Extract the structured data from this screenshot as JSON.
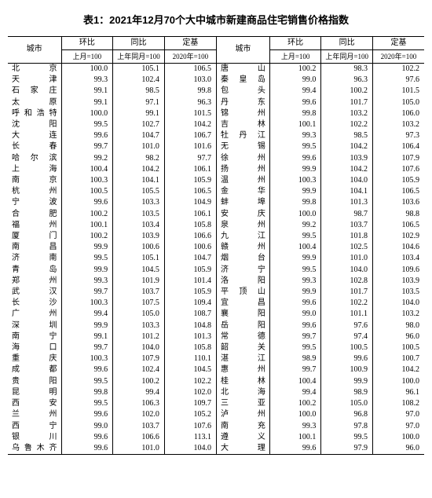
{
  "title": "表1：2021年12月70个大中城市新建商品住宅销售价格指数",
  "header": {
    "city": "城市",
    "mom": "环比",
    "yoy": "同比",
    "base": "定基",
    "mom_sub": "上月=100",
    "yoy_sub": "上年同月=100",
    "base_sub": "2020年=100"
  },
  "left": [
    {
      "c": "北　　京",
      "m": "100.0",
      "y": "105.1",
      "b": "106.5"
    },
    {
      "c": "天　　津",
      "m": "99.3",
      "y": "102.4",
      "b": "103.0"
    },
    {
      "c": "石 家 庄",
      "m": "99.1",
      "y": "98.5",
      "b": "99.8"
    },
    {
      "c": "太　　原",
      "m": "99.1",
      "y": "97.1",
      "b": "96.3"
    },
    {
      "c": "呼和浩特",
      "m": "100.0",
      "y": "99.1",
      "b": "101.5"
    },
    {
      "c": "沈　　阳",
      "m": "99.5",
      "y": "102.7",
      "b": "104.2"
    },
    {
      "c": "大　　连",
      "m": "99.6",
      "y": "104.7",
      "b": "106.7"
    },
    {
      "c": "长　　春",
      "m": "99.7",
      "y": "101.0",
      "b": "101.6"
    },
    {
      "c": "哈 尔 滨",
      "m": "99.2",
      "y": "98.2",
      "b": "97.7"
    },
    {
      "c": "上　　海",
      "m": "100.4",
      "y": "104.2",
      "b": "106.1"
    },
    {
      "c": "南　　京",
      "m": "100.3",
      "y": "104.1",
      "b": "105.9"
    },
    {
      "c": "杭　　州",
      "m": "100.5",
      "y": "105.5",
      "b": "106.5"
    },
    {
      "c": "宁　　波",
      "m": "99.6",
      "y": "103.3",
      "b": "104.9"
    },
    {
      "c": "合　　肥",
      "m": "100.2",
      "y": "103.5",
      "b": "106.1"
    },
    {
      "c": "福　　州",
      "m": "100.1",
      "y": "103.4",
      "b": "105.8"
    },
    {
      "c": "厦　　门",
      "m": "100.2",
      "y": "103.9",
      "b": "106.6"
    },
    {
      "c": "南　　昌",
      "m": "99.9",
      "y": "100.6",
      "b": "100.6"
    },
    {
      "c": "济　　南",
      "m": "99.5",
      "y": "105.1",
      "b": "104.7"
    },
    {
      "c": "青　　岛",
      "m": "99.9",
      "y": "104.5",
      "b": "105.9"
    },
    {
      "c": "郑　　州",
      "m": "99.3",
      "y": "101.9",
      "b": "101.4"
    },
    {
      "c": "武　　汉",
      "m": "99.7",
      "y": "103.7",
      "b": "105.9"
    },
    {
      "c": "长　　沙",
      "m": "100.3",
      "y": "107.5",
      "b": "109.4"
    },
    {
      "c": "广　　州",
      "m": "99.4",
      "y": "105.0",
      "b": "108.7"
    },
    {
      "c": "深　　圳",
      "m": "99.9",
      "y": "103.3",
      "b": "104.8"
    },
    {
      "c": "南　　宁",
      "m": "99.1",
      "y": "101.2",
      "b": "101.3"
    },
    {
      "c": "海　　口",
      "m": "99.7",
      "y": "104.0",
      "b": "105.8"
    },
    {
      "c": "重　　庆",
      "m": "100.3",
      "y": "107.9",
      "b": "110.1"
    },
    {
      "c": "成　　都",
      "m": "99.6",
      "y": "102.4",
      "b": "104.5"
    },
    {
      "c": "贵　　阳",
      "m": "99.5",
      "y": "100.2",
      "b": "102.2"
    },
    {
      "c": "昆　　明",
      "m": "99.8",
      "y": "99.4",
      "b": "102.0"
    },
    {
      "c": "西　　安",
      "m": "99.5",
      "y": "106.3",
      "b": "109.7"
    },
    {
      "c": "兰　　州",
      "m": "99.6",
      "y": "102.0",
      "b": "105.2"
    },
    {
      "c": "西　　宁",
      "m": "99.0",
      "y": "103.7",
      "b": "107.6"
    },
    {
      "c": "银　　川",
      "m": "99.6",
      "y": "106.6",
      "b": "113.1"
    },
    {
      "c": "乌鲁木齐",
      "m": "99.6",
      "y": "101.0",
      "b": "104.0"
    }
  ],
  "right": [
    {
      "c": "唐　　山",
      "m": "100.2",
      "y": "98.3",
      "b": "102.2"
    },
    {
      "c": "秦 皇 岛",
      "m": "99.0",
      "y": "96.3",
      "b": "97.6"
    },
    {
      "c": "包　　头",
      "m": "99.4",
      "y": "100.2",
      "b": "101.5"
    },
    {
      "c": "丹　　东",
      "m": "99.6",
      "y": "101.7",
      "b": "105.0"
    },
    {
      "c": "锦　　州",
      "m": "99.8",
      "y": "103.2",
      "b": "106.0"
    },
    {
      "c": "吉　　林",
      "m": "100.1",
      "y": "102.2",
      "b": "103.2"
    },
    {
      "c": "牡 丹 江",
      "m": "99.3",
      "y": "98.5",
      "b": "97.3"
    },
    {
      "c": "无　　锡",
      "m": "99.5",
      "y": "104.2",
      "b": "106.4"
    },
    {
      "c": "徐　　州",
      "m": "99.6",
      "y": "103.9",
      "b": "107.9"
    },
    {
      "c": "扬　　州",
      "m": "99.9",
      "y": "104.2",
      "b": "107.6"
    },
    {
      "c": "温　　州",
      "m": "100.3",
      "y": "104.0",
      "b": "105.9"
    },
    {
      "c": "金　　华",
      "m": "99.9",
      "y": "104.1",
      "b": "106.5"
    },
    {
      "c": "蚌　　埠",
      "m": "99.8",
      "y": "101.3",
      "b": "103.6"
    },
    {
      "c": "安　　庆",
      "m": "100.0",
      "y": "98.7",
      "b": "98.8"
    },
    {
      "c": "泉　　州",
      "m": "99.2",
      "y": "103.7",
      "b": "106.5"
    },
    {
      "c": "九　　江",
      "m": "99.5",
      "y": "101.8",
      "b": "102.9"
    },
    {
      "c": "赣　　州",
      "m": "100.4",
      "y": "102.5",
      "b": "104.6"
    },
    {
      "c": "烟　　台",
      "m": "99.9",
      "y": "101.0",
      "b": "103.4"
    },
    {
      "c": "济　　宁",
      "m": "99.5",
      "y": "104.0",
      "b": "109.6"
    },
    {
      "c": "洛　　阳",
      "m": "99.3",
      "y": "102.8",
      "b": "103.9"
    },
    {
      "c": "平 顶 山",
      "m": "99.9",
      "y": "101.7",
      "b": "103.5"
    },
    {
      "c": "宜　　昌",
      "m": "99.6",
      "y": "102.2",
      "b": "104.0"
    },
    {
      "c": "襄　　阳",
      "m": "99.0",
      "y": "101.1",
      "b": "103.2"
    },
    {
      "c": "岳　　阳",
      "m": "99.6",
      "y": "97.6",
      "b": "98.0"
    },
    {
      "c": "常　　德",
      "m": "99.7",
      "y": "97.4",
      "b": "96.0"
    },
    {
      "c": "韶　　关",
      "m": "99.5",
      "y": "100.5",
      "b": "100.5"
    },
    {
      "c": "湛　　江",
      "m": "98.9",
      "y": "99.6",
      "b": "100.7"
    },
    {
      "c": "惠　　州",
      "m": "99.7",
      "y": "100.9",
      "b": "104.2"
    },
    {
      "c": "桂　　林",
      "m": "100.4",
      "y": "99.9",
      "b": "100.0"
    },
    {
      "c": "北　　海",
      "m": "99.4",
      "y": "98.9",
      "b": "96.1"
    },
    {
      "c": "三　　亚",
      "m": "100.2",
      "y": "105.0",
      "b": "108.2"
    },
    {
      "c": "泸　　州",
      "m": "100.0",
      "y": "96.8",
      "b": "97.0"
    },
    {
      "c": "南　　充",
      "m": "99.3",
      "y": "97.8",
      "b": "97.0"
    },
    {
      "c": "遵　　义",
      "m": "100.1",
      "y": "99.5",
      "b": "100.0"
    },
    {
      "c": "大　　理",
      "m": "99.6",
      "y": "97.9",
      "b": "96.0"
    }
  ]
}
